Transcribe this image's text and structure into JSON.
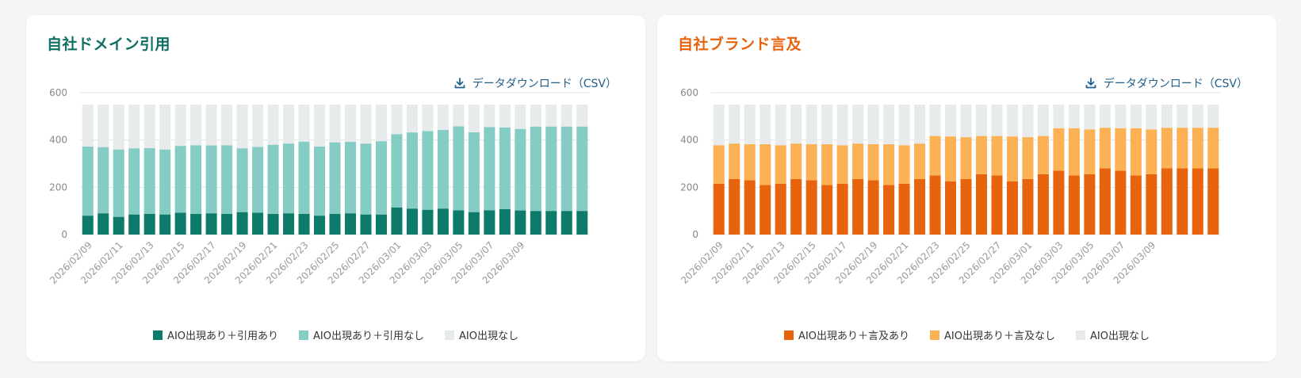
{
  "panels": [
    {
      "title": "自社ドメイン引用",
      "title_color": "#0f6e63",
      "csv_label": "データダウンロード（CSV）",
      "icon": "download-icon",
      "legend": [
        "AIO出現あり＋引用あり",
        "AIO出現あり＋引用なし",
        "AIO出現なし"
      ]
    },
    {
      "title": "自社ブランド言及",
      "title_color": "#e8640c",
      "csv_label": "データダウンロード（CSV）",
      "icon": "download-icon",
      "legend": [
        "AIO出現あり＋言及あり",
        "AIO出現あり＋言及なし",
        "AIO出現なし"
      ]
    }
  ],
  "chart_data": [
    {
      "type": "bar",
      "stacked": true,
      "ylim": [
        0,
        600
      ],
      "yticks": [
        0,
        200,
        400,
        600
      ],
      "grid": true,
      "legend_position": "bottom",
      "categories": [
        "2026/02/09",
        "2026/02/10",
        "2026/02/11",
        "2026/02/12",
        "2026/02/13",
        "2026/02/14",
        "2026/02/15",
        "2026/02/16",
        "2026/02/17",
        "2026/02/18",
        "2026/02/19",
        "2026/02/20",
        "2026/02/21",
        "2026/02/22",
        "2026/02/23",
        "2026/02/24",
        "2026/02/25",
        "2026/02/26",
        "2026/02/27",
        "2026/02/28",
        "2026/03/01",
        "2026/03/02",
        "2026/03/03",
        "2026/03/04",
        "2026/03/05",
        "2026/03/06",
        "2026/03/07",
        "2026/03/08",
        "2026/03/09",
        "2026/03/10",
        "2026/03/11",
        "2026/03/12",
        "2026/03/13"
      ],
      "x_tick_labels": [
        "2026/02/09",
        "2026/02/11",
        "2026/02/13",
        "2026/02/15",
        "2026/02/17",
        "2026/02/19",
        "2026/02/21",
        "2026/02/23",
        "2026/02/25",
        "2026/02/27",
        "2026/03/01",
        "2026/03/03",
        "2026/03/05",
        "2026/03/07",
        "2026/03/09"
      ],
      "series": [
        {
          "name": "AIO出現あり＋引用あり",
          "color": "#0d7a6a",
          "values": [
            80,
            90,
            75,
            85,
            88,
            85,
            93,
            88,
            90,
            88,
            95,
            93,
            88,
            90,
            88,
            80,
            88,
            90,
            85,
            85,
            115,
            110,
            105,
            110,
            103,
            95,
            103,
            108,
            102,
            100,
            100,
            100,
            100
          ]
        },
        {
          "name": "AIO出現あり＋引用なし",
          "color": "#85cdc4",
          "values": [
            292,
            280,
            285,
            280,
            278,
            275,
            282,
            290,
            287,
            290,
            270,
            278,
            292,
            295,
            305,
            292,
            302,
            302,
            300,
            310,
            310,
            322,
            333,
            333,
            355,
            338,
            352,
            345,
            345,
            357,
            357,
            357,
            357
          ]
        },
        {
          "name": "AIO出現なし",
          "color": "#e7ebec",
          "values": [
            178,
            180,
            190,
            185,
            184,
            190,
            175,
            172,
            173,
            172,
            185,
            179,
            170,
            165,
            157,
            178,
            160,
            158,
            165,
            155,
            125,
            118,
            112,
            107,
            92,
            117,
            95,
            97,
            103,
            93,
            93,
            93,
            93
          ]
        }
      ]
    },
    {
      "type": "bar",
      "stacked": true,
      "ylim": [
        0,
        600
      ],
      "yticks": [
        0,
        200,
        400,
        600
      ],
      "grid": true,
      "legend_position": "bottom",
      "categories": [
        "2026/02/09",
        "2026/02/10",
        "2026/02/11",
        "2026/02/12",
        "2026/02/13",
        "2026/02/14",
        "2026/02/15",
        "2026/02/16",
        "2026/02/17",
        "2026/02/18",
        "2026/02/19",
        "2026/02/20",
        "2026/02/21",
        "2026/02/22",
        "2026/02/23",
        "2026/02/24",
        "2026/02/25",
        "2026/02/26",
        "2026/02/27",
        "2026/02/28",
        "2026/03/01",
        "2026/03/02",
        "2026/03/03",
        "2026/03/04",
        "2026/03/05",
        "2026/03/06",
        "2026/03/07",
        "2026/03/08",
        "2026/03/09",
        "2026/03/10",
        "2026/03/11",
        "2026/03/12",
        "2026/03/13"
      ],
      "x_tick_labels": [
        "2026/02/09",
        "2026/02/11",
        "2026/02/13",
        "2026/02/15",
        "2026/02/17",
        "2026/02/19",
        "2026/02/21",
        "2026/02/23",
        "2026/02/25",
        "2026/02/27",
        "2026/03/01",
        "2026/03/03",
        "2026/03/05",
        "2026/03/07",
        "2026/03/09"
      ],
      "series": [
        {
          "name": "AIO出現あり＋言及あり",
          "color": "#e8640c",
          "values": [
            215,
            235,
            230,
            210,
            215,
            235,
            230,
            210,
            215,
            235,
            230,
            210,
            215,
            235,
            250,
            225,
            235,
            255,
            250,
            225,
            235,
            255,
            270,
            250,
            255,
            280,
            270,
            250,
            255,
            280,
            280,
            280,
            280
          ]
        },
        {
          "name": "AIO出現あり＋言及なし",
          "color": "#fbb154",
          "values": [
            163,
            150,
            152,
            172,
            163,
            150,
            152,
            172,
            163,
            150,
            152,
            172,
            163,
            150,
            167,
            190,
            177,
            162,
            167,
            190,
            177,
            162,
            180,
            200,
            190,
            172,
            180,
            200,
            190,
            172,
            172,
            172,
            172
          ]
        },
        {
          "name": "AIO出現なし",
          "color": "#e7ebec",
          "values": [
            172,
            165,
            168,
            168,
            172,
            165,
            168,
            168,
            172,
            165,
            168,
            168,
            172,
            165,
            133,
            135,
            138,
            133,
            133,
            135,
            138,
            133,
            100,
            100,
            105,
            98,
            100,
            100,
            105,
            98,
            98,
            98,
            98
          ]
        }
      ]
    }
  ]
}
